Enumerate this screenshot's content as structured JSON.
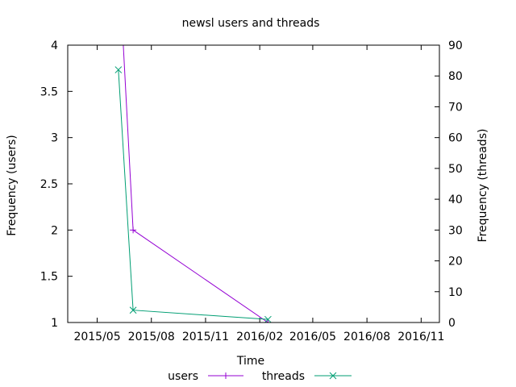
{
  "chart_data": {
    "type": "line",
    "title": "newsl users and threads",
    "xlabel": "Time",
    "ylabel_left": "Frequency (users)",
    "ylabel_right": "Frequency (threads)",
    "x_ticks": [
      "2015/05",
      "2015/08",
      "2015/11",
      "2016/02",
      "2016/05",
      "2016/08",
      "2016/11"
    ],
    "y_left_ticks": [
      "1",
      "1.5",
      "2",
      "2.5",
      "3",
      "3.5",
      "4"
    ],
    "y_left_range": [
      1,
      4
    ],
    "y_right_ticks": [
      "0",
      "10",
      "20",
      "30",
      "40",
      "50",
      "60",
      "70",
      "80",
      "90"
    ],
    "y_right_range": [
      0,
      90
    ],
    "x_range": [
      "2015-03-12",
      "2016-12-02"
    ],
    "legend_position": "bottom",
    "series": [
      {
        "name": "users",
        "axis": "left",
        "color": "#9400d3",
        "marker": "plus",
        "points": [
          {
            "x": "2015-06-06",
            "y": 5
          },
          {
            "x": "2015-07-01",
            "y": 2
          },
          {
            "x": "2016-02-15",
            "y": 1
          }
        ]
      },
      {
        "name": "threads",
        "axis": "right",
        "color": "#009e73",
        "marker": "cross",
        "points": [
          {
            "x": "2015-06-06",
            "y": 82
          },
          {
            "x": "2015-07-01",
            "y": 4
          },
          {
            "x": "2016-02-15",
            "y": 1
          }
        ]
      }
    ]
  }
}
